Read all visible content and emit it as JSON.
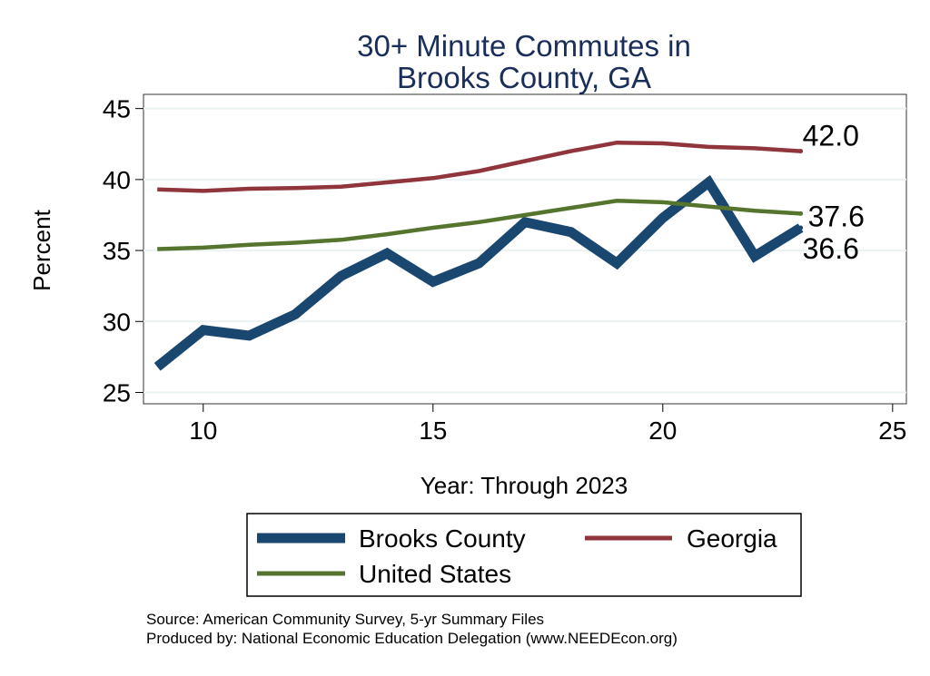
{
  "chart_data": {
    "type": "line",
    "title": [
      "30+ Minute Commutes in",
      "Brooks County, GA"
    ],
    "xlabel": "Year: Through 2023",
    "ylabel": "Percent",
    "xlim": [
      8.7,
      25.3
    ],
    "ylim": [
      24.2,
      46.0
    ],
    "xticks": [
      10,
      15,
      20,
      25
    ],
    "yticks": [
      25,
      30,
      35,
      40,
      45
    ],
    "grid": true,
    "legend": "bottom",
    "x": [
      9,
      10,
      11,
      12,
      13,
      14,
      15,
      16,
      17,
      18,
      19,
      20,
      21,
      22,
      23
    ],
    "series": [
      {
        "name": "Brooks County",
        "color": "#1a476f",
        "values": [
          26.8,
          29.4,
          29.0,
          30.5,
          33.2,
          34.8,
          32.8,
          34.1,
          37.0,
          36.3,
          34.1,
          37.3,
          39.8,
          34.6,
          36.6
        ],
        "end_label": "36.6"
      },
      {
        "name": "Georgia",
        "color": "#90353b",
        "values": [
          39.3,
          39.2,
          39.35,
          39.4,
          39.5,
          39.8,
          40.1,
          40.6,
          41.3,
          42.0,
          42.6,
          42.55,
          42.3,
          42.2,
          42.0
        ],
        "end_label": "42.0"
      },
      {
        "name": "United States",
        "color": "#55752f",
        "values": [
          35.1,
          35.2,
          35.4,
          35.55,
          35.75,
          36.15,
          36.6,
          37.0,
          37.5,
          38.0,
          38.5,
          38.4,
          38.1,
          37.8,
          37.6
        ],
        "end_label": "37.6"
      }
    ]
  },
  "source_line": "Source: American Community Survey, 5-yr Summary Files",
  "produced_line": "Produced by: National Economic Education Delegation (www.NEEDEcon.org)",
  "colors": {
    "background": "#ffffff",
    "plot_background": "#ffffff",
    "title": "#1a2e5a",
    "axis": "#000000",
    "grid": "#eaf2f3"
  }
}
